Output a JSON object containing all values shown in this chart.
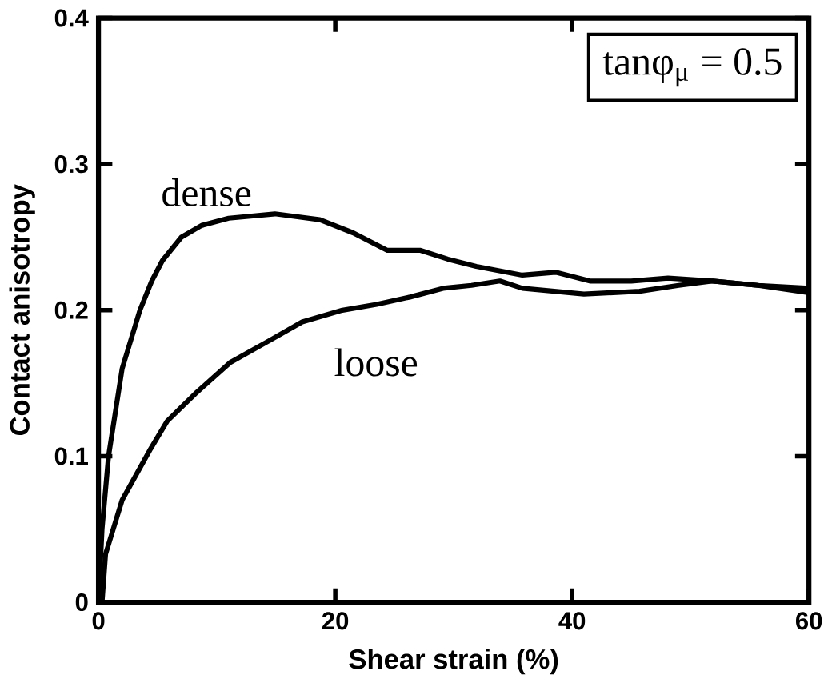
{
  "chart_data": {
    "type": "line",
    "xlabel": "Shear strain (%)",
    "ylabel": "Contact anisotropy",
    "xlim": [
      0,
      60
    ],
    "ylim": [
      0,
      0.4
    ],
    "xticks": [
      0,
      20,
      40,
      60
    ],
    "yticks": [
      0,
      0.1,
      0.2,
      0.3,
      0.4
    ],
    "annotations": [
      "tanφ$_{μ}$ = 0.5"
    ],
    "grid": false,
    "legend": false,
    "series": [
      {
        "name": "dense",
        "color": "#000000",
        "x": [
          0,
          0.3,
          0.85,
          2,
          3.5,
          4.5,
          5.4,
          7,
          8.7,
          11,
          14.9,
          18.7,
          21.5,
          24.4,
          27.2,
          29.5,
          31.9,
          35.8,
          38.6,
          41.5,
          45,
          48.1,
          51.9,
          55.7,
          60
        ],
        "values": [
          0,
          0.05,
          0.1,
          0.16,
          0.2,
          0.22,
          0.234,
          0.25,
          0.258,
          0.263,
          0.266,
          0.262,
          0.253,
          0.241,
          0.241,
          0.235,
          0.23,
          0.224,
          0.226,
          0.22,
          0.22,
          0.222,
          0.22,
          0.217,
          0.215
        ]
      },
      {
        "name": "loose",
        "color": "#000000",
        "x": [
          0.3,
          0.6,
          2,
          4.4,
          5.8,
          8.2,
          11.1,
          14.4,
          17.2,
          20.6,
          23.5,
          26.3,
          29.1,
          31.5,
          33.9,
          35.8,
          38.5,
          41,
          45.7,
          49,
          51.9,
          55.7,
          60
        ],
        "values": [
          0,
          0.033,
          0.07,
          0.105,
          0.124,
          0.143,
          0.164,
          0.179,
          0.192,
          0.2,
          0.204,
          0.209,
          0.215,
          0.217,
          0.22,
          0.215,
          0.213,
          0.211,
          0.213,
          0.217,
          0.22,
          0.217,
          0.212
        ]
      }
    ]
  }
}
